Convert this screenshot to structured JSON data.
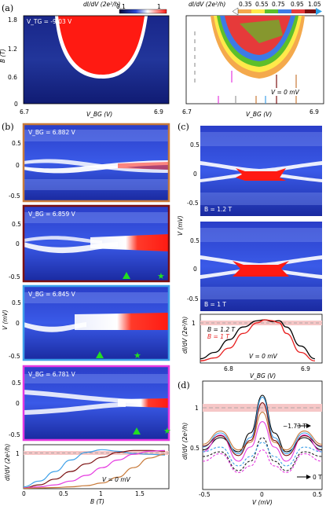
{
  "figure": {
    "panel_labels": [
      "(a)",
      "(b)",
      "(c)",
      "(d)"
    ],
    "colors": {
      "dark_blue": "#04093c",
      "mid_blue": "#2a4ad8",
      "light_blue": "#8fa2ff",
      "red": "#ff1a12",
      "dark_red": "#cc1010",
      "white": "#ffffff",
      "star_green": "#22dd22",
      "pink_band": "#f6c7c7",
      "frame_orange": "#c87a3a",
      "frame_maroon": "#7b1010",
      "frame_cyan": "#3ea0e8",
      "frame_magenta": "#e53ae0"
    }
  },
  "panel_a": {
    "left": {
      "vtg_label": "V_TG = -9.03 V",
      "colorbar_label": "dI/dV (2e²/h)",
      "colorbar_ticks": [
        "0.1",
        "1"
      ],
      "ylabel": "B (T)",
      "yticks": [
        "1.8",
        "1.2",
        "0.6",
        "0"
      ],
      "xlabel": "V_BG (V)",
      "xticks": [
        "6.7",
        "6.9"
      ]
    },
    "right": {
      "colorbar_label": "dI/dV (2e²/h)",
      "colorbar_ticks": [
        "0.35",
        "0.55",
        "0.75",
        "0.95",
        "1.05"
      ],
      "colorbar_colors": [
        "#f4a94c",
        "#ffe94a",
        "#5dbf2a",
        "#3d7be6",
        "#e63a3a",
        "#7a1010"
      ],
      "annotation": "V = 0 mV",
      "xlabel": "V_BG (V)",
      "xticks": [
        "6.7",
        "6.9"
      ]
    }
  },
  "panel_b": {
    "subpanels": [
      {
        "label": "V_BG = 6.882 V",
        "frame": "#c87a3a",
        "yticks": [
          "0.5",
          "0",
          "-0.5"
        ]
      },
      {
        "label": "V_BG = 6.859 V",
        "frame": "#7b1010",
        "yticks": [
          "0.5",
          "0",
          "-0.5"
        ]
      },
      {
        "label": "V_BG = 6.845 V",
        "frame": "#3ea0e8",
        "yticks": [
          "0.5",
          "0",
          "-0.5"
        ]
      },
      {
        "label": "V_BG = 6.781 V",
        "frame": "#e53ae0",
        "yticks": [
          "0.5",
          "0",
          "-0.5"
        ]
      }
    ],
    "ylabel": "V (mV)",
    "line_plot": {
      "ylabel": "dI/dV (2e²/h)",
      "yticks": [
        "1"
      ],
      "xlabel": "B (T)",
      "xticks": [
        "0",
        "0.5",
        "1",
        "1.5"
      ],
      "annotation": "V = 0 mV"
    }
  },
  "panel_c": {
    "maps": [
      {
        "label": "B = 1.2 T",
        "yticks": [
          "0.5",
          "0",
          "-0.5"
        ]
      },
      {
        "label": "B = 1 T",
        "yticks": [
          "0.5",
          "0",
          "-0.5"
        ]
      }
    ],
    "ylabel": "V (mV)",
    "line_plot": {
      "ylabel": "dI/dV (2e²/h)",
      "yticks": [
        "1"
      ],
      "legend": [
        "B = 1.2 T",
        "B = 1 T"
      ],
      "annotation": "V = 0 mV",
      "xlabel": "V_BG (V)",
      "xticks": [
        "6.8",
        "6.9"
      ]
    }
  },
  "panel_d": {
    "ylabel": "dI/dV (2e²/h)",
    "yticks": [
      "1",
      "0.5"
    ],
    "xlabel": "V (mV)",
    "xticks": [
      "-0.5",
      "0",
      "0.5"
    ],
    "annotation_high": "~1.73 T",
    "annotation_low": "0 T"
  },
  "chart_data": [
    {
      "type": "line",
      "panel": "b-bottom",
      "xlabel": "B (T)",
      "ylabel": "dI/dV (2e²/h)",
      "xlim": [
        0,
        1.85
      ],
      "ylim": [
        0,
        1.15
      ],
      "series": [
        {
          "color": "#3ea0e8",
          "x": [
            0,
            0.2,
            0.4,
            0.6,
            0.8,
            1.0,
            1.2,
            1.4,
            1.6,
            1.8
          ],
          "y": [
            0.05,
            0.2,
            0.45,
            0.75,
            0.95,
            1.02,
            0.98,
            0.92,
            0.9,
            0.88
          ]
        },
        {
          "color": "#7b1010",
          "x": [
            0,
            0.2,
            0.4,
            0.6,
            0.8,
            1.0,
            1.2,
            1.4,
            1.6,
            1.8
          ],
          "y": [
            0.02,
            0.1,
            0.25,
            0.45,
            0.65,
            0.82,
            0.95,
            1.0,
            1.0,
            0.98
          ]
        },
        {
          "color": "#e53ae0",
          "x": [
            0,
            0.2,
            0.4,
            0.6,
            0.8,
            1.0,
            1.2,
            1.4,
            1.6,
            1.8
          ],
          "y": [
            0.02,
            0.05,
            0.1,
            0.2,
            0.35,
            0.55,
            0.75,
            0.9,
            0.98,
            1.0
          ]
        },
        {
          "color": "#c87a3a",
          "x": [
            0,
            0.2,
            0.4,
            0.6,
            0.8,
            1.0,
            1.2,
            1.4,
            1.6,
            1.8
          ],
          "y": [
            0.01,
            0.02,
            0.03,
            0.05,
            0.08,
            0.15,
            0.3,
            0.55,
            0.8,
            0.9
          ]
        }
      ]
    },
    {
      "type": "line",
      "panel": "c-bottom",
      "xlabel": "V_BG (V)",
      "ylabel": "dI/dV (2e²/h)",
      "xlim": [
        6.75,
        6.92
      ],
      "ylim": [
        0,
        1.15
      ],
      "series": [
        {
          "name": "B = 1.2 T",
          "color": "#000000",
          "x": [
            6.75,
            6.77,
            6.79,
            6.81,
            6.83,
            6.84,
            6.85,
            6.86,
            6.87,
            6.89,
            6.91
          ],
          "y": [
            0.1,
            0.25,
            0.55,
            0.85,
            1.0,
            1.02,
            0.98,
            1.0,
            0.85,
            0.4,
            0.1
          ]
        },
        {
          "name": "B = 1 T",
          "color": "#e82020",
          "x": [
            6.75,
            6.77,
            6.79,
            6.81,
            6.83,
            6.84,
            6.85,
            6.86,
            6.87,
            6.89,
            6.91
          ],
          "y": [
            0.05,
            0.12,
            0.35,
            0.7,
            0.95,
            1.02,
            1.0,
            0.95,
            0.7,
            0.25,
            0.05
          ]
        }
      ]
    },
    {
      "type": "line",
      "panel": "d",
      "xlabel": "V (mV)",
      "ylabel": "dI/dV (2e²/h)",
      "xlim": [
        -0.5,
        0.5
      ],
      "ylim": [
        0,
        1.15
      ],
      "series": [
        {
          "color": "#000000",
          "x": [
            -0.5,
            -0.35,
            -0.2,
            -0.1,
            0,
            0.1,
            0.2,
            0.35,
            0.5
          ],
          "y": [
            0.42,
            0.55,
            0.4,
            0.6,
            1.0,
            0.6,
            0.4,
            0.55,
            0.42
          ]
        },
        {
          "color": "#3ea0e8",
          "x": [
            -0.5,
            -0.35,
            -0.2,
            -0.1,
            0,
            0.1,
            0.2,
            0.35,
            0.5
          ],
          "y": [
            0.45,
            0.6,
            0.38,
            0.55,
            0.98,
            0.55,
            0.38,
            0.6,
            0.45
          ]
        },
        {
          "color": "#e53ae0",
          "x": [
            -0.5,
            -0.35,
            -0.2,
            -0.1,
            0,
            0.1,
            0.2,
            0.35,
            0.5
          ],
          "y": [
            0.4,
            0.58,
            0.3,
            0.45,
            0.72,
            0.45,
            0.3,
            0.58,
            0.4
          ]
        },
        {
          "color": "#c87a3a",
          "x": [
            -0.5,
            -0.35,
            -0.2,
            -0.1,
            0,
            0.1,
            0.2,
            0.35,
            0.5
          ],
          "y": [
            0.48,
            0.62,
            0.42,
            0.5,
            0.82,
            0.5,
            0.42,
            0.62,
            0.48
          ]
        },
        {
          "color": "#7b1010",
          "x": [
            -0.5,
            -0.35,
            -0.2,
            -0.1,
            0,
            0.1,
            0.2,
            0.35,
            0.5
          ],
          "y": [
            0.46,
            0.57,
            0.36,
            0.52,
            0.92,
            0.52,
            0.36,
            0.57,
            0.46
          ]
        },
        {
          "color": "#222222",
          "dash": true,
          "x": [
            -0.5,
            -0.35,
            -0.2,
            -0.1,
            0,
            0.1,
            0.2,
            0.35,
            0.5
          ],
          "y": [
            0.35,
            0.4,
            0.2,
            0.3,
            0.55,
            0.3,
            0.2,
            0.4,
            0.35
          ]
        },
        {
          "color": "#3ea0e8",
          "dash": true,
          "x": [
            -0.5,
            -0.35,
            -0.2,
            -0.1,
            0,
            0.1,
            0.2,
            0.35,
            0.5
          ],
          "y": [
            0.4,
            0.45,
            0.25,
            0.35,
            0.5,
            0.35,
            0.25,
            0.45,
            0.4
          ]
        },
        {
          "color": "#e53ae0",
          "dash": true,
          "x": [
            -0.5,
            -0.35,
            -0.2,
            -0.1,
            0,
            0.1,
            0.2,
            0.35,
            0.5
          ],
          "y": [
            0.3,
            0.38,
            0.18,
            0.25,
            0.42,
            0.25,
            0.18,
            0.38,
            0.3
          ]
        }
      ]
    }
  ]
}
